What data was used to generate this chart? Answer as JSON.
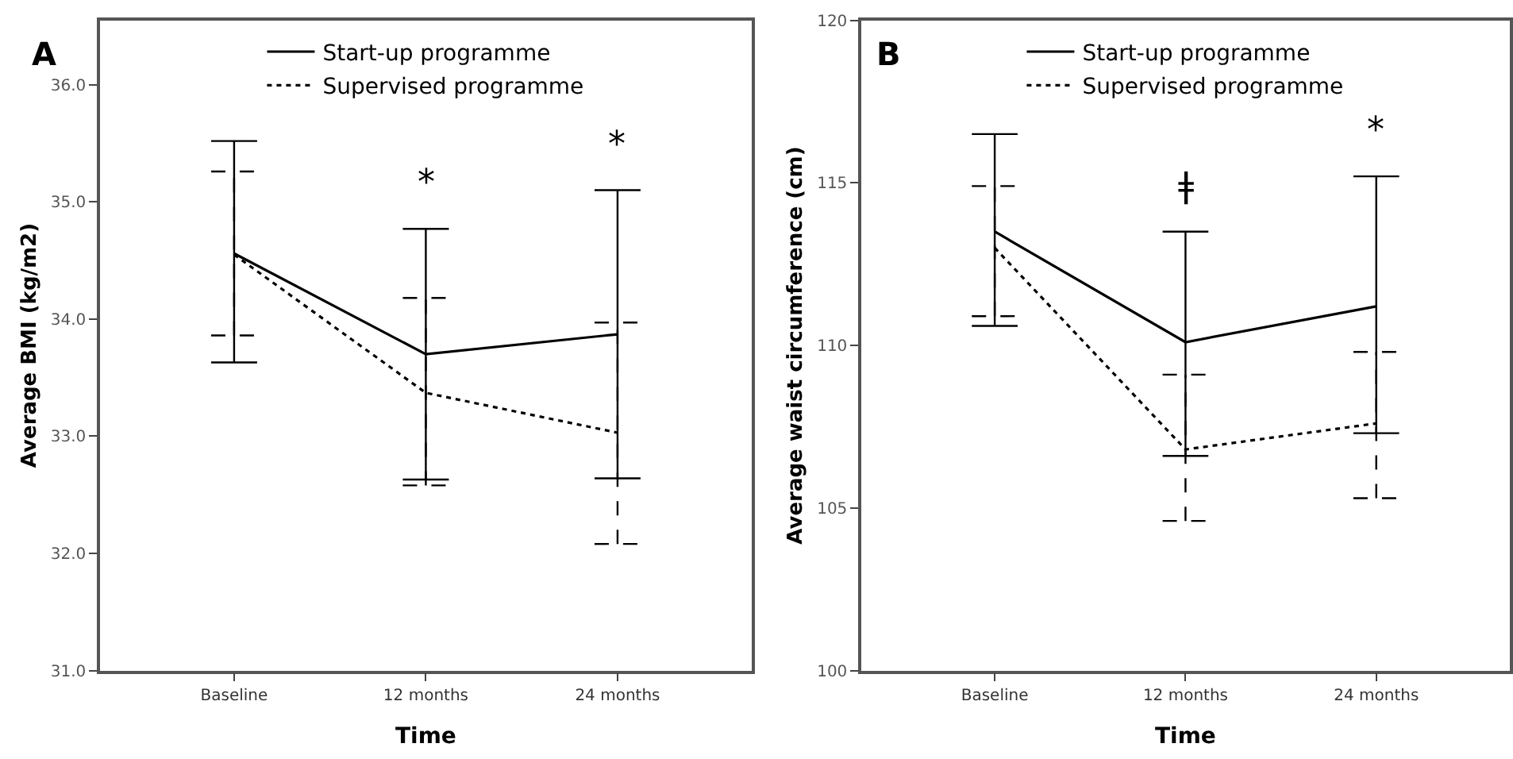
{
  "chart_data": [
    {
      "type": "line",
      "title": "A",
      "xlabel": "Time",
      "ylabel": "Average BMI (kg/m2)",
      "categories": [
        "Baseline",
        "12 months",
        "24 months"
      ],
      "series": [
        {
          "name": "Start-up programme",
          "color": "#000000",
          "line_style": "solid",
          "values": [
            34.56,
            33.7,
            33.87
          ],
          "errors": [
            [
              33.63,
              35.52
            ],
            [
              32.63,
              34.77
            ],
            [
              32.64,
              35.1
            ]
          ]
        },
        {
          "name": "Supervised programme",
          "color": "#000000",
          "line_style": "dotted",
          "values": [
            34.55,
            33.37,
            33.03
          ],
          "errors": [
            [
              33.86,
              35.26
            ],
            [
              32.58,
              34.18
            ],
            [
              32.08,
              33.97
            ]
          ]
        }
      ],
      "ylim": [
        31.0,
        36.55
      ],
      "yticks": [
        {
          "value": 31,
          "label": "31.0"
        },
        {
          "value": 32,
          "label": "32.0"
        },
        {
          "value": 33,
          "label": "33.0"
        },
        {
          "value": 34,
          "label": "34.0"
        },
        {
          "value": 35,
          "label": "35.0"
        },
        {
          "value": 36,
          "label": "36.0"
        }
      ],
      "annotations": [
        "*",
        "*"
      ],
      "legend": "top"
    },
    {
      "type": "line",
      "title": "B",
      "xlabel": "Time",
      "ylabel": "Average waist circumference (cm)",
      "categories": [
        "Baseline",
        "12 months",
        "24 months"
      ],
      "series": [
        {
          "name": "Start-up programme",
          "color": "#000000",
          "line_style": "solid",
          "values": [
            113.5,
            110.1,
            111.2
          ],
          "errors": [
            [
              110.6,
              116.5
            ],
            [
              106.6,
              113.5
            ],
            [
              107.3,
              115.2
            ]
          ]
        },
        {
          "name": "Supervised programme",
          "color": "#000000",
          "line_style": "dotted",
          "values": [
            113.0,
            106.8,
            107.6
          ],
          "errors": [
            [
              110.9,
              114.9
            ],
            [
              104.6,
              109.1
            ],
            [
              105.3,
              109.8
            ]
          ]
        }
      ],
      "ylim": [
        100,
        120
      ],
      "yticks": [
        100,
        105,
        110,
        115,
        120
      ],
      "annotations": [
        "ǂ",
        "*"
      ],
      "legend": "top"
    }
  ]
}
